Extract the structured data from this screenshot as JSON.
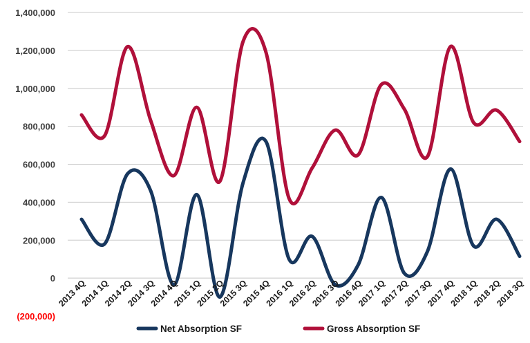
{
  "chart_data": {
    "type": "line",
    "title": "",
    "xlabel": "",
    "ylabel": "",
    "ylim": [
      -200000,
      1400000
    ],
    "y_ticks": [
      {
        "value": 1400000,
        "label": "1,400,000"
      },
      {
        "value": 1200000,
        "label": "1,200,000"
      },
      {
        "value": 1000000,
        "label": "1,000,000"
      },
      {
        "value": 800000,
        "label": "800,000"
      },
      {
        "value": 600000,
        "label": "600,000"
      },
      {
        "value": 400000,
        "label": "400,000"
      },
      {
        "value": 200000,
        "label": "200,000"
      },
      {
        "value": 0,
        "label": "0"
      },
      {
        "value": -200000,
        "label": "(200,000)"
      }
    ],
    "negative_label_color": "#ff0000",
    "grid": true,
    "grid_axis": "y",
    "legend_position": "bottom",
    "smooth": true,
    "categories": [
      "2013 4Q",
      "2014 1Q",
      "2014 2Q",
      "2014 3Q",
      "2014 4Q",
      "2015 1Q",
      "2015 2Q",
      "2015 3Q",
      "2015 4Q",
      "2016 1Q",
      "2016 2Q",
      "2016 3Q",
      "2016 4Q",
      "2017 1Q",
      "2017 2Q",
      "2017 3Q",
      "2017 4Q",
      "2018 1Q",
      "2018 2Q",
      "2018 3Q"
    ],
    "series": [
      {
        "name": "Net Absorption SF",
        "color": "#17375e",
        "values": [
          310000,
          180000,
          550000,
          460000,
          -35000,
          440000,
          -100000,
          500000,
          720000,
          100000,
          220000,
          -35000,
          70000,
          425000,
          25000,
          140000,
          575000,
          170000,
          310000,
          115000
        ]
      },
      {
        "name": "Gross Absorption SF",
        "color": "#b0103a",
        "values": [
          860000,
          750000,
          1220000,
          830000,
          540000,
          900000,
          510000,
          1245000,
          1190000,
          420000,
          580000,
          780000,
          650000,
          1020000,
          890000,
          640000,
          1220000,
          820000,
          885000,
          720000
        ]
      }
    ]
  }
}
